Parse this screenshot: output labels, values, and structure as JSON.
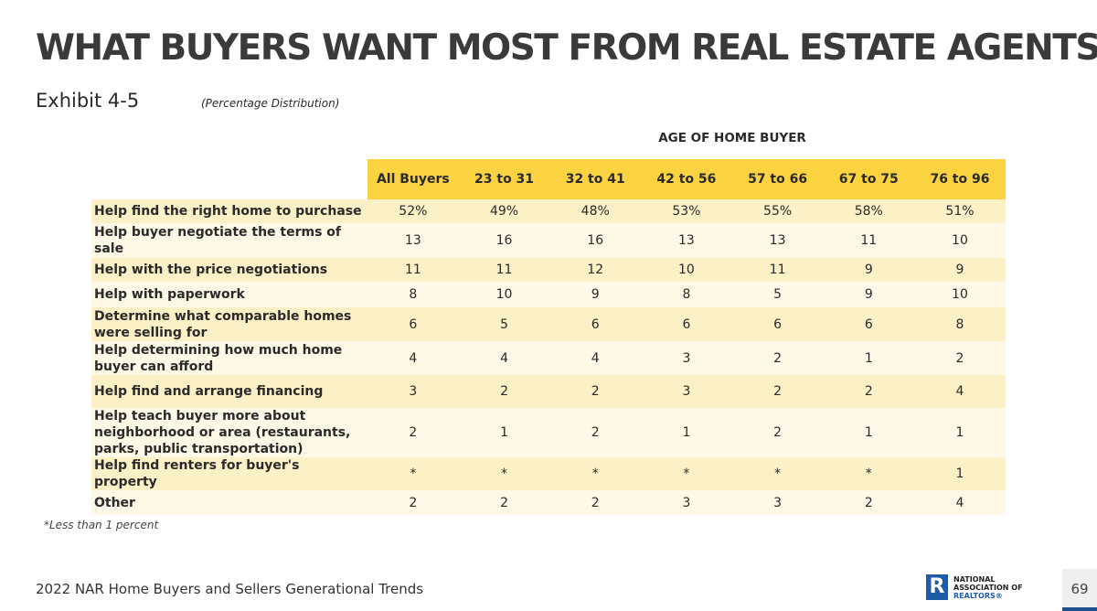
{
  "title": "WHAT BUYERS WANT MOST FROM REAL ESTATE AGENTS",
  "exhibit": "Exhibit 4-5",
  "distribution": "(Percentage Distribution)",
  "group_header": "AGE OF HOME BUYER",
  "columns": [
    "All Buyers",
    "23 to 31",
    "32 to 41",
    "42 to 56",
    "57 to 66",
    "67 to 75",
    "76 to 96"
  ],
  "rows": [
    {
      "label": "Help find the right home to purchase",
      "values": [
        "52%",
        "49%",
        "48%",
        "53%",
        "55%",
        "58%",
        "51%"
      ]
    },
    {
      "label": "Help buyer negotiate the terms of sale",
      "values": [
        "13",
        "16",
        "16",
        "13",
        "13",
        "11",
        "10"
      ]
    },
    {
      "label": "Help with the price negotiations",
      "values": [
        "11",
        "11",
        "12",
        "10",
        "11",
        "9",
        "9"
      ]
    },
    {
      "label": "Help with paperwork",
      "values": [
        "8",
        "10",
        "9",
        "8",
        "5",
        "9",
        "10"
      ]
    },
    {
      "label": "Determine what comparable homes were selling for",
      "values": [
        "6",
        "5",
        "6",
        "6",
        "6",
        "6",
        "8"
      ]
    },
    {
      "label": "Help determining how much home buyer can afford",
      "values": [
        "4",
        "4",
        "4",
        "3",
        "2",
        "1",
        "2"
      ]
    },
    {
      "label": "Help find and arrange financing",
      "values": [
        "3",
        "2",
        "2",
        "3",
        "2",
        "2",
        "4"
      ]
    },
    {
      "label": "Help teach buyer more about neighborhood or area (restaurants, parks, public transportation)",
      "values": [
        "2",
        "1",
        "2",
        "1",
        "2",
        "1",
        "1"
      ]
    },
    {
      "label": "Help find renters for buyer's property",
      "values": [
        "*",
        "*",
        "*",
        "*",
        "*",
        "*",
        "1"
      ]
    },
    {
      "label": "Other",
      "values": [
        "2",
        "2",
        "2",
        "3",
        "3",
        "2",
        "4"
      ]
    }
  ],
  "footnote": "*Less than 1 percent",
  "source": "2022 NAR Home Buyers and Sellers Generational Trends",
  "logo_text": [
    "NATIONAL",
    "ASSOCIATION OF",
    "REALTORS®"
  ],
  "page_number": "69"
}
